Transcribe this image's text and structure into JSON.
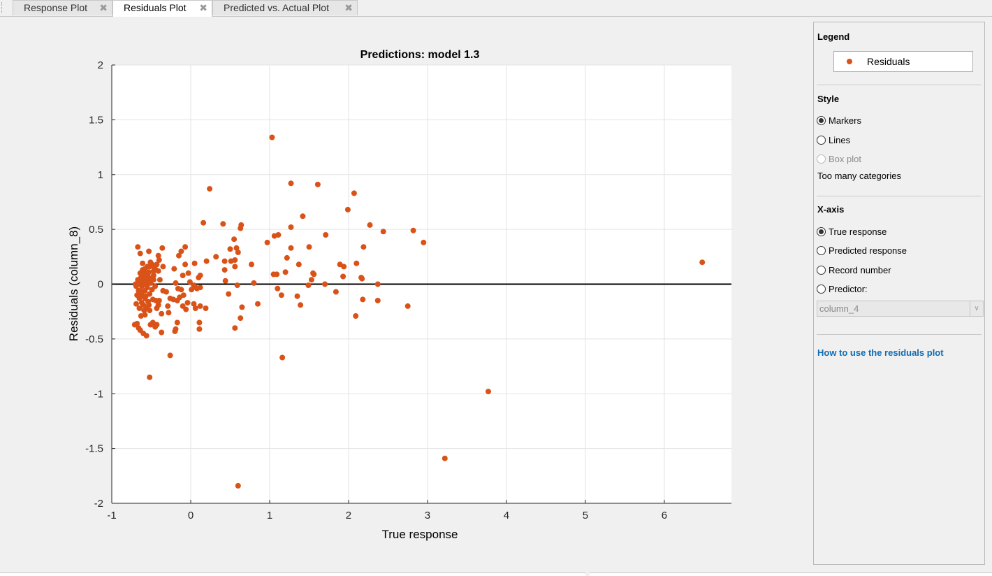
{
  "tabs": [
    {
      "label": "Response Plot",
      "active": false
    },
    {
      "label": "Residuals Plot",
      "active": true
    },
    {
      "label": "Predicted vs. Actual Plot",
      "active": false
    }
  ],
  "tab_close_glyph": "✖",
  "chart_data": {
    "type": "scatter",
    "title": "Predictions: model 1.3",
    "xlabel": "True response",
    "ylabel": "Residuals (column_8)",
    "xlim": [
      -1,
      6.85
    ],
    "ylim": [
      -2,
      2
    ],
    "xticks": [
      -1,
      0,
      1,
      2,
      3,
      4,
      5,
      6
    ],
    "yticks": [
      -2,
      -1.5,
      -1,
      -0.5,
      0,
      0.5,
      1,
      1.5,
      2
    ],
    "grid": true,
    "reference_line_y": 0,
    "marker_color": "#d95319",
    "series": [
      {
        "name": "Residuals",
        "points": [
          [
            1.03,
            1.34
          ],
          [
            0.24,
            0.87
          ],
          [
            1.27,
            0.92
          ],
          [
            1.61,
            0.91
          ],
          [
            2.07,
            0.83
          ],
          [
            1.99,
            0.68
          ],
          [
            1.42,
            0.62
          ],
          [
            0.16,
            0.56
          ],
          [
            0.41,
            0.55
          ],
          [
            0.64,
            0.54
          ],
          [
            2.27,
            0.54
          ],
          [
            2.44,
            0.48
          ],
          [
            2.82,
            0.49
          ],
          [
            0.63,
            0.51
          ],
          [
            1.27,
            0.52
          ],
          [
            1.11,
            0.45
          ],
          [
            1.71,
            0.45
          ],
          [
            1.06,
            0.44
          ],
          [
            0.55,
            0.41
          ],
          [
            2.95,
            0.38
          ],
          [
            0.97,
            0.38
          ],
          [
            1.5,
            0.34
          ],
          [
            2.19,
            0.34
          ],
          [
            0.5,
            0.32
          ],
          [
            0.58,
            0.33
          ],
          [
            1.27,
            0.33
          ],
          [
            0.6,
            0.29
          ],
          [
            1.22,
            0.24
          ],
          [
            0.32,
            0.25
          ],
          [
            0.43,
            0.21
          ],
          [
            0.51,
            0.21
          ],
          [
            0.56,
            0.22
          ],
          [
            0.2,
            0.21
          ],
          [
            0.05,
            0.19
          ],
          [
            0.77,
            0.18
          ],
          [
            1.37,
            0.18
          ],
          [
            1.89,
            0.18
          ],
          [
            1.94,
            0.16
          ],
          [
            2.1,
            0.19
          ],
          [
            0.43,
            0.13
          ],
          [
            0.56,
            0.16
          ],
          [
            1.2,
            0.11
          ],
          [
            1.05,
            0.09
          ],
          [
            1.09,
            0.09
          ],
          [
            1.55,
            0.1
          ],
          [
            1.56,
            0.09
          ],
          [
            1.93,
            0.07
          ],
          [
            2.16,
            0.06
          ],
          [
            2.17,
            0.05
          ],
          [
            0.44,
            0.03
          ],
          [
            0.8,
            0.01
          ],
          [
            1.53,
            0.04
          ],
          [
            1.49,
            -0.01
          ],
          [
            1.7,
            0.0
          ],
          [
            2.37,
            0.0
          ],
          [
            0.59,
            -0.01
          ],
          [
            1.1,
            -0.04
          ],
          [
            1.84,
            -0.07
          ],
          [
            0.48,
            -0.09
          ],
          [
            1.15,
            -0.1
          ],
          [
            1.35,
            -0.11
          ],
          [
            1.39,
            -0.19
          ],
          [
            0.85,
            -0.18
          ],
          [
            0.65,
            -0.21
          ],
          [
            2.18,
            -0.14
          ],
          [
            2.37,
            -0.15
          ],
          [
            2.75,
            -0.2
          ],
          [
            2.09,
            -0.29
          ],
          [
            0.63,
            -0.31
          ],
          [
            0.56,
            -0.4
          ],
          [
            1.16,
            -0.67
          ],
          [
            3.77,
            -0.98
          ],
          [
            3.22,
            -1.59
          ],
          [
            0.6,
            -1.84
          ],
          [
            6.48,
            0.2
          ],
          [
            0.12,
            -0.2
          ],
          [
            0.19,
            -0.22
          ],
          [
            0.08,
            -0.04
          ],
          [
            0.12,
            -0.03
          ],
          [
            0.11,
            -0.35
          ],
          [
            0.11,
            -0.41
          ],
          [
            0.01,
            -0.05
          ],
          [
            0.04,
            -0.18
          ],
          [
            0.06,
            -0.22
          ],
          [
            0.06,
            -0.03
          ],
          [
            0.04,
            -0.01
          ],
          [
            0.12,
            0.08
          ],
          [
            0.1,
            0.06
          ],
          [
            -0.07,
            0.34
          ],
          [
            -0.12,
            0.3
          ],
          [
            -0.15,
            0.26
          ],
          [
            -0.07,
            0.18
          ],
          [
            -0.03,
            0.1
          ],
          [
            -0.1,
            0.08
          ],
          [
            -0.01,
            0.02
          ],
          [
            -0.21,
            0.14
          ],
          [
            -0.19,
            0.01
          ],
          [
            -0.16,
            -0.04
          ],
          [
            -0.12,
            -0.05
          ],
          [
            -0.09,
            -0.1
          ],
          [
            -0.14,
            -0.12
          ],
          [
            -0.17,
            -0.15
          ],
          [
            -0.1,
            -0.2
          ],
          [
            -0.06,
            -0.23
          ],
          [
            -0.17,
            -0.35
          ],
          [
            -0.19,
            -0.41
          ],
          [
            -0.2,
            -0.43
          ],
          [
            -0.26,
            -0.65
          ],
          [
            -0.28,
            -0.26
          ],
          [
            -0.31,
            -0.07
          ],
          [
            -0.22,
            -0.14
          ],
          [
            -0.26,
            -0.13
          ],
          [
            -0.04,
            -0.17
          ],
          [
            -0.36,
            0.33
          ],
          [
            -0.41,
            0.26
          ],
          [
            -0.4,
            0.22
          ],
          [
            -0.35,
            0.16
          ],
          [
            -0.44,
            0.13
          ],
          [
            -0.47,
            0.08
          ],
          [
            -0.5,
            0.05
          ],
          [
            -0.39,
            0.04
          ],
          [
            -0.45,
            -0.02
          ],
          [
            -0.4,
            -0.15
          ],
          [
            -0.43,
            -0.22
          ],
          [
            -0.37,
            -0.27
          ],
          [
            -0.43,
            -0.37
          ],
          [
            -0.45,
            -0.39
          ],
          [
            -0.37,
            -0.44
          ],
          [
            -0.48,
            -0.35
          ],
          [
            -0.44,
            -0.15
          ],
          [
            -0.53,
            0.3
          ],
          [
            -0.54,
            0.1
          ],
          [
            -0.53,
            0.06
          ],
          [
            -0.56,
            0.03
          ],
          [
            -0.59,
            0.0
          ],
          [
            -0.63,
            0.02
          ],
          [
            -0.67,
            0.04
          ],
          [
            -0.69,
            -0.02
          ],
          [
            -0.66,
            -0.06
          ],
          [
            -0.62,
            -0.1
          ],
          [
            -0.58,
            -0.13
          ],
          [
            -0.54,
            -0.16
          ],
          [
            -0.6,
            -0.19
          ],
          [
            -0.65,
            -0.22
          ],
          [
            -0.68,
            -0.36
          ],
          [
            -0.71,
            -0.37
          ],
          [
            -0.66,
            -0.4
          ],
          [
            -0.6,
            -0.45
          ],
          [
            -0.56,
            -0.47
          ],
          [
            -0.52,
            -0.85
          ],
          [
            -0.67,
            0.34
          ],
          [
            -0.64,
            0.28
          ],
          [
            -0.61,
            0.19
          ],
          [
            -0.58,
            0.14
          ],
          [
            -0.55,
            0.16
          ],
          [
            -0.51,
            0.2
          ],
          [
            -0.49,
            0.18
          ],
          [
            -0.47,
            0.12
          ],
          [
            -0.46,
            0.15
          ],
          [
            -0.52,
            0.16
          ],
          [
            -0.57,
            0.11
          ],
          [
            -0.6,
            0.08
          ],
          [
            -0.63,
            0.06
          ],
          [
            -0.66,
            0.03
          ],
          [
            -0.55,
            0.07
          ],
          [
            -0.5,
            0.03
          ],
          [
            -0.55,
            -0.03
          ],
          [
            -0.58,
            -0.06
          ],
          [
            -0.62,
            -0.07
          ],
          [
            -0.57,
            -0.11
          ],
          [
            -0.52,
            -0.09
          ],
          [
            -0.49,
            -0.05
          ],
          [
            -0.53,
            -0.19
          ],
          [
            -0.56,
            -0.22
          ],
          [
            -0.59,
            -0.24
          ],
          [
            -0.62,
            -0.17
          ],
          [
            -0.65,
            -0.13
          ],
          [
            -0.69,
            -0.18
          ],
          [
            -0.7,
            0.0
          ],
          [
            -0.66,
            0.01
          ],
          [
            -0.61,
            0.13
          ],
          [
            -0.64,
            0.1
          ],
          [
            -0.59,
            0.04
          ],
          [
            -0.62,
            -0.02
          ],
          [
            -0.56,
            -0.01
          ],
          [
            -0.51,
            0.01
          ],
          [
            -0.53,
            0.11
          ],
          [
            -0.47,
            0.04
          ],
          [
            -0.41,
            0.12
          ],
          [
            -0.43,
            0.18
          ],
          [
            -0.58,
            -0.28
          ],
          [
            -0.63,
            -0.29
          ],
          [
            -0.52,
            -0.24
          ],
          [
            -0.48,
            -0.14
          ],
          [
            -0.41,
            -0.19
          ],
          [
            -0.51,
            -0.37
          ],
          [
            -0.64,
            -0.42
          ],
          [
            -0.68,
            -0.1
          ],
          [
            -0.35,
            -0.06
          ],
          [
            -0.29,
            -0.2
          ]
        ]
      }
    ]
  },
  "side_panel": {
    "legend_title": "Legend",
    "legend_entry": "Residuals",
    "style_title": "Style",
    "style_options": [
      {
        "label": "Markers",
        "checked": true,
        "disabled": false
      },
      {
        "label": "Lines",
        "checked": false,
        "disabled": false
      },
      {
        "label": "Box plot",
        "checked": false,
        "disabled": true
      }
    ],
    "style_note": "Too many categories",
    "xaxis_title": "X-axis",
    "xaxis_options": [
      {
        "label": "True response",
        "checked": true
      },
      {
        "label": "Predicted response",
        "checked": false
      },
      {
        "label": "Record number",
        "checked": false
      },
      {
        "label": "Predictor:",
        "checked": false
      }
    ],
    "predictor_value": "column_4",
    "help_link": "How to use the residuals plot"
  }
}
